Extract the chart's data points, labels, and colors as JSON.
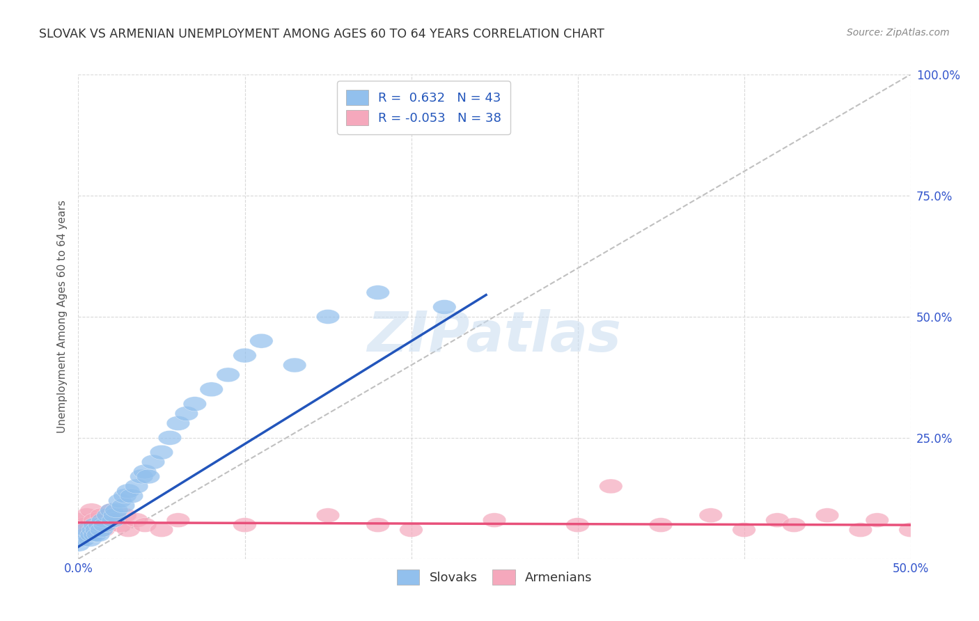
{
  "title": "SLOVAK VS ARMENIAN UNEMPLOYMENT AMONG AGES 60 TO 64 YEARS CORRELATION CHART",
  "source": "Source: ZipAtlas.com",
  "ylabel": "Unemployment Among Ages 60 to 64 years",
  "xlim": [
    0.0,
    0.5
  ],
  "ylim": [
    0.0,
    1.0
  ],
  "xtick_vals": [
    0.0,
    0.1,
    0.2,
    0.3,
    0.4,
    0.5
  ],
  "xtick_labels": [
    "0.0%",
    "",
    "",
    "",
    "",
    "50.0%"
  ],
  "ytick_vals": [
    0.0,
    0.25,
    0.5,
    0.75,
    1.0
  ],
  "ytick_labels_left": [
    "",
    "",
    "",
    "",
    ""
  ],
  "ytick_labels_right": [
    "",
    "25.0%",
    "50.0%",
    "75.0%",
    "100.0%"
  ],
  "legend_r_slovak": "0.632",
  "legend_n_slovak": "43",
  "legend_r_armenian": "-0.053",
  "legend_n_armenian": "38",
  "slovak_color": "#92C0ED",
  "armenian_color": "#F5A8BC",
  "slovak_line_color": "#2255BB",
  "armenian_line_color": "#E8507A",
  "ref_line_color": "#C0C0C0",
  "background_color": "#FFFFFF",
  "grid_color": "#D0D0D0",
  "title_color": "#333333",
  "axis_label_color": "#555555",
  "tick_color": "#3355CC",
  "watermark_text": "ZIPatlas",
  "watermark_color": "#C8DCF0",
  "legend_text_color": "#2255BB",
  "legend_label_color": "#333333",
  "figsize": [
    14.06,
    8.92
  ],
  "dpi": 100,
  "slovak_points_x": [
    0.0,
    0.003,
    0.005,
    0.005,
    0.007,
    0.008,
    0.009,
    0.01,
    0.01,
    0.011,
    0.012,
    0.013,
    0.014,
    0.015,
    0.016,
    0.018,
    0.02,
    0.021,
    0.022,
    0.023,
    0.025,
    0.027,
    0.028,
    0.03,
    0.032,
    0.035,
    0.038,
    0.04,
    0.042,
    0.045,
    0.05,
    0.055,
    0.06,
    0.065,
    0.07,
    0.08,
    0.09,
    0.1,
    0.11,
    0.13,
    0.15,
    0.18,
    0.22
  ],
  "slovak_points_y": [
    0.03,
    0.04,
    0.05,
    0.06,
    0.04,
    0.05,
    0.06,
    0.07,
    0.05,
    0.06,
    0.05,
    0.07,
    0.06,
    0.08,
    0.07,
    0.09,
    0.1,
    0.08,
    0.09,
    0.1,
    0.12,
    0.11,
    0.13,
    0.14,
    0.13,
    0.15,
    0.17,
    0.18,
    0.17,
    0.2,
    0.22,
    0.25,
    0.28,
    0.3,
    0.32,
    0.35,
    0.38,
    0.42,
    0.45,
    0.4,
    0.5,
    0.55,
    0.52
  ],
  "armenian_points_x": [
    0.0,
    0.0,
    0.003,
    0.005,
    0.007,
    0.008,
    0.009,
    0.01,
    0.012,
    0.014,
    0.015,
    0.017,
    0.018,
    0.02,
    0.022,
    0.025,
    0.028,
    0.03,
    0.035,
    0.04,
    0.05,
    0.06,
    0.1,
    0.15,
    0.18,
    0.2,
    0.25,
    0.3,
    0.32,
    0.35,
    0.38,
    0.4,
    0.42,
    0.43,
    0.45,
    0.47,
    0.48,
    0.5
  ],
  "armenian_points_y": [
    0.05,
    0.08,
    0.07,
    0.09,
    0.06,
    0.1,
    0.07,
    0.08,
    0.07,
    0.09,
    0.06,
    0.08,
    0.07,
    0.1,
    0.08,
    0.07,
    0.09,
    0.06,
    0.08,
    0.07,
    0.06,
    0.08,
    0.07,
    0.09,
    0.07,
    0.06,
    0.08,
    0.07,
    0.15,
    0.07,
    0.09,
    0.06,
    0.08,
    0.07,
    0.09,
    0.06,
    0.08,
    0.06
  ],
  "slovak_line_x": [
    0.0,
    0.245
  ],
  "slovak_line_y": [
    0.025,
    0.545
  ],
  "armenian_line_x": [
    0.0,
    0.5
  ],
  "armenian_line_y": [
    0.075,
    0.07
  ],
  "ref_line_x": [
    0.0,
    0.5
  ],
  "ref_line_y": [
    0.0,
    1.0
  ]
}
